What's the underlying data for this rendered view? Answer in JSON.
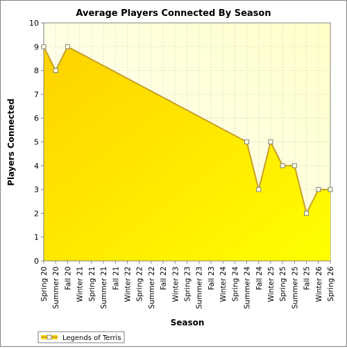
{
  "chart_data": {
    "type": "area",
    "title": "Average Players Connected By Season",
    "xlabel": "Season",
    "ylabel": "Players Connected",
    "ylim": [
      0,
      10
    ],
    "yticks": [
      0,
      1,
      2,
      3,
      4,
      5,
      6,
      7,
      8,
      9,
      10
    ],
    "categories": [
      "Spring 20",
      "Summer 20",
      "Fall 20",
      "Winter 21",
      "Spring 21",
      "Summer 21",
      "Fall 21",
      "Winter 22",
      "Spring 22",
      "Summer 22",
      "Fall 22",
      "Winter 23",
      "Spring 23",
      "Summer 23",
      "Fall 23",
      "Winter 24",
      "Spring 24",
      "Summer 24",
      "Fall 24",
      "Winter 25",
      "Spring 25",
      "Summer 25",
      "Fall 25",
      "Winter 26",
      "Spring 26"
    ],
    "series": [
      {
        "name": "Legends of Terris",
        "values": [
          9,
          8,
          9,
          null,
          null,
          null,
          null,
          null,
          null,
          null,
          null,
          null,
          null,
          null,
          null,
          null,
          null,
          5,
          3,
          5,
          4,
          4,
          2,
          3,
          3
        ],
        "color_top": "#ffd700",
        "color_bottom": "#ffff00",
        "line_color": "#c8a028"
      }
    ],
    "grid": true,
    "legend": "bottom-left",
    "plot_background": "#ffffdd"
  }
}
